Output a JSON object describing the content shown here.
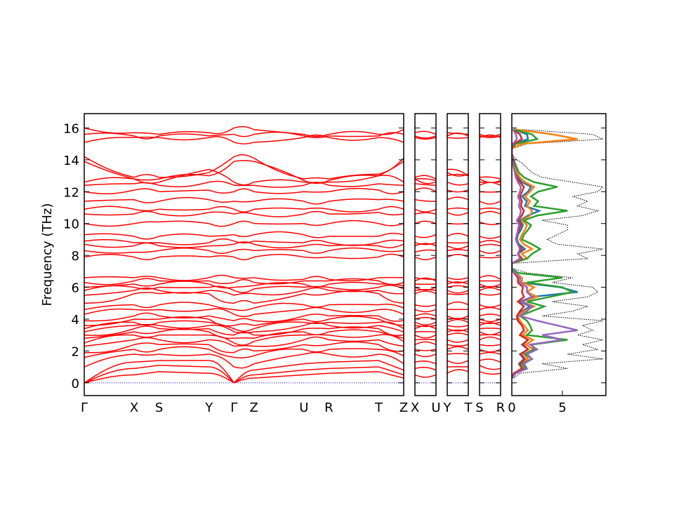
{
  "chart_data": {
    "type": "line",
    "ylabel": "Frequency (THz)",
    "ylim": [
      -0.8,
      16.9
    ],
    "yticks": [
      0,
      2,
      4,
      6,
      8,
      10,
      12,
      14,
      16
    ],
    "colors": {
      "bands": "#ff0000",
      "zero_line": "#0000ff",
      "dos_total": "#000000",
      "pdos": [
        "#1f77b4",
        "#ff7f0e",
        "#2ca02c",
        "#d62728",
        "#9467bd"
      ]
    },
    "band_segments": [
      {
        "labels": [
          "Γ",
          "X",
          "S",
          "Y",
          "Γ",
          "Z",
          "U",
          "R",
          "T",
          "Z"
        ],
        "positions": [
          0,
          1,
          1.5,
          2.5,
          3,
          3.4,
          4.4,
          4.9,
          5.9,
          6.4
        ]
      },
      {
        "labels": [
          "X",
          "U"
        ],
        "positions": [
          0,
          1
        ]
      },
      {
        "labels": [
          "Y",
          "T"
        ],
        "positions": [
          0,
          1
        ]
      },
      {
        "labels": [
          "S",
          "R"
        ],
        "positions": [
          0,
          1
        ]
      }
    ],
    "band_levels": {
      "Gamma": [
        0,
        0,
        0,
        1.0,
        1.6,
        1.9,
        2.3,
        2.5,
        2.8,
        3.0,
        3.2,
        3.4,
        3.6,
        3.9,
        4.3,
        4.6,
        5.0,
        5.5,
        5.8,
        6.0,
        6.3,
        6.6,
        7.9,
        8.3,
        8.7,
        8.9,
        9.3,
        10.0,
        10.6,
        10.9,
        11.4,
        12.0,
        12.4,
        12.6,
        13.9,
        14.2,
        15.1,
        15.6,
        16.0
      ],
      "X": [
        0.5,
        0.9,
        1.3,
        1.8,
        2.1,
        2.4,
        2.7,
        3.0,
        3.2,
        3.4,
        3.6,
        3.8,
        4.0,
        4.2,
        4.6,
        4.9,
        5.6,
        5.8,
        6.0,
        6.2,
        6.4,
        6.6,
        7.9,
        8.2,
        8.6,
        8.8,
        9.2,
        10.0,
        10.6,
        10.9,
        11.5,
        12.1,
        12.5,
        12.8,
        12.8,
        12.9,
        15.4,
        15.5,
        15.7
      ],
      "S": [
        0.7,
        1.1,
        1.4,
        1.8,
        2.1,
        2.4,
        2.7,
        3.0,
        3.2,
        3.4,
        3.6,
        3.8,
        4.0,
        4.2,
        4.6,
        4.9,
        5.6,
        5.8,
        6.0,
        6.2,
        6.4,
        6.6,
        7.9,
        8.3,
        8.6,
        8.8,
        9.2,
        10.1,
        10.6,
        10.9,
        11.4,
        12.0,
        12.4,
        12.6,
        12.8,
        12.9,
        15.4,
        15.5,
        15.6
      ],
      "Y": [
        0.6,
        1.0,
        1.4,
        1.8,
        2.1,
        2.4,
        2.7,
        3.0,
        3.2,
        3.4,
        3.6,
        3.8,
        4.0,
        4.2,
        4.6,
        4.9,
        5.6,
        5.8,
        6.0,
        6.2,
        6.4,
        6.6,
        7.9,
        8.3,
        8.6,
        8.8,
        9.2,
        10.0,
        10.7,
        10.9,
        11.5,
        12.1,
        12.6,
        13.4,
        13.0,
        13.2,
        15.4,
        15.5,
        15.7
      ],
      "Z": [
        0.3,
        0.5,
        0.8,
        1.2,
        1.7,
        2.0,
        2.3,
        2.6,
        2.8,
        3.0,
        3.2,
        3.4,
        3.6,
        3.9,
        4.3,
        4.7,
        5.0,
        5.6,
        5.9,
        6.1,
        6.3,
        6.6,
        7.9,
        8.3,
        8.7,
        8.9,
        9.3,
        10.0,
        10.6,
        10.9,
        11.4,
        12.0,
        12.4,
        12.6,
        13.9,
        14.1,
        15.1,
        15.6,
        15.9
      ],
      "U": [
        0.5,
        0.8,
        1.2,
        1.8,
        2.1,
        2.4,
        2.7,
        3.0,
        3.2,
        3.4,
        3.6,
        3.8,
        4.0,
        4.2,
        4.6,
        4.9,
        5.6,
        5.8,
        6.0,
        6.2,
        6.4,
        6.5,
        7.9,
        8.3,
        8.6,
        8.8,
        9.3,
        10.0,
        10.6,
        10.9,
        11.4,
        12.0,
        12.4,
        12.6,
        12.7,
        12.8,
        15.4,
        15.5,
        15.6
      ],
      "R": [
        0.6,
        0.9,
        1.3,
        1.8,
        2.1,
        2.4,
        2.7,
        3.0,
        3.2,
        3.4,
        3.6,
        3.8,
        4.0,
        4.2,
        4.6,
        4.9,
        5.6,
        5.8,
        6.0,
        6.2,
        6.4,
        6.5,
        7.9,
        8.3,
        8.6,
        8.8,
        9.2,
        10.0,
        10.6,
        10.9,
        11.4,
        12.0,
        12.4,
        12.6,
        12.7,
        12.8,
        15.4,
        15.5,
        15.6
      ],
      "T": [
        0.7,
        1.0,
        1.4,
        1.8,
        2.1,
        2.4,
        2.7,
        3.0,
        3.2,
        3.4,
        3.6,
        3.8,
        4.0,
        4.2,
        4.6,
        4.9,
        5.6,
        5.8,
        6.0,
        6.2,
        6.4,
        6.6,
        7.9,
        8.3,
        8.6,
        8.8,
        9.2,
        10.0,
        10.7,
        10.9,
        11.5,
        12.1,
        12.5,
        13.0,
        13.0,
        13.1,
        15.4,
        15.5,
        15.6
      ]
    },
    "dos": {
      "xlim": [
        0,
        9.3
      ],
      "xticks": [
        0,
        5
      ],
      "freq": [
        0.3,
        0.6,
        0.9,
        1.2,
        1.5,
        1.8,
        2.1,
        2.4,
        2.7,
        3.0,
        3.3,
        3.6,
        3.9,
        4.2,
        4.5,
        4.8,
        5.1,
        5.4,
        5.7,
        6.0,
        6.3,
        6.6,
        6.9,
        7.2,
        7.5,
        7.8,
        8.1,
        8.4,
        8.7,
        9.0,
        9.3,
        9.6,
        9.9,
        10.2,
        10.5,
        10.8,
        11.1,
        11.4,
        11.7,
        12.0,
        12.3,
        12.6,
        12.9,
        13.2,
        13.5,
        13.8,
        14.1,
        14.4,
        14.7,
        15.0,
        15.3,
        15.6,
        15.9
      ],
      "total": [
        0.2,
        0.8,
        5.5,
        3.0,
        9.0,
        5.5,
        8.5,
        7.0,
        9.0,
        6.5,
        8.0,
        7.0,
        9.0,
        3.0,
        6.0,
        7.5,
        4.0,
        7.5,
        8.5,
        8.0,
        4.0,
        6.0,
        1.5,
        0,
        0,
        7.5,
        6.5,
        9.0,
        4.5,
        3.5,
        4.5,
        5.5,
        5.5,
        3.0,
        7.0,
        8.5,
        6.5,
        7.5,
        6.0,
        8.5,
        9.0,
        6.0,
        3.0,
        2.0,
        1.5,
        1.0,
        0.3,
        0,
        0,
        1.5,
        9.0,
        8.0,
        1.0
      ],
      "pdos": [
        [
          0.05,
          0.2,
          1.0,
          0.7,
          1.2,
          0.8,
          1.6,
          1.0,
          1.6,
          0.8,
          1.2,
          1.0,
          0.6,
          0.5,
          1.0,
          1.8,
          0.8,
          2.0,
          6.5,
          4.8,
          0.8,
          0.8,
          0.3,
          0,
          0,
          1.0,
          0.6,
          1.3,
          0.7,
          0.5,
          0.6,
          0.9,
          1.1,
          0.8,
          1.6,
          2.7,
          1.3,
          1.5,
          1.0,
          1.6,
          1.9,
          1.0,
          0.6,
          0.4,
          0.3,
          0.2,
          0.1,
          0,
          0,
          0.3,
          1.6,
          1.5,
          0.2
        ],
        [
          0.05,
          0.3,
          1.2,
          1.0,
          1.6,
          1.2,
          2.1,
          1.4,
          2.1,
          1.1,
          1.6,
          1.2,
          0.8,
          0.6,
          1.2,
          2.2,
          1.0,
          2.5,
          1.5,
          2.2,
          1.0,
          1.0,
          0.4,
          0,
          0,
          1.5,
          1.0,
          2.0,
          1.2,
          0.8,
          1.0,
          1.3,
          1.5,
          1.0,
          1.8,
          2.0,
          1.5,
          1.8,
          1.3,
          1.8,
          2.2,
          1.3,
          0.8,
          0.5,
          0.4,
          0.3,
          0.1,
          0,
          0,
          1.0,
          6.5,
          4.0,
          0.4
        ],
        [
          0.05,
          0.3,
          1.3,
          1.0,
          2.0,
          1.3,
          2.2,
          2.0,
          5.5,
          1.5,
          2.0,
          1.8,
          1.5,
          0.8,
          2.0,
          3.2,
          1.5,
          3.8,
          6.0,
          5.0,
          1.5,
          5.0,
          0.6,
          0,
          0,
          1.5,
          2.0,
          2.8,
          2.0,
          1.0,
          1.2,
          1.6,
          1.9,
          1.2,
          2.5,
          5.5,
          2.2,
          2.6,
          1.9,
          2.6,
          4.5,
          2.2,
          1.2,
          0.7,
          0.5,
          0.3,
          0.1,
          0,
          0,
          0.4,
          2.5,
          2.0,
          0.2
        ],
        [
          0.05,
          0.2,
          1.0,
          0.8,
          1.3,
          0.9,
          1.6,
          1.1,
          1.6,
          0.8,
          1.2,
          1.0,
          0.6,
          0.5,
          0.8,
          1.2,
          0.6,
          1.2,
          1.0,
          1.1,
          0.6,
          0.6,
          0.2,
          0,
          0,
          1.0,
          0.6,
          1.0,
          0.6,
          0.4,
          0.5,
          0.7,
          0.9,
          0.6,
          1.0,
          1.2,
          0.9,
          1.0,
          0.8,
          1.0,
          1.2,
          0.8,
          0.5,
          0.3,
          0.2,
          0.2,
          0.1,
          0,
          0,
          0.2,
          1.0,
          0.8,
          0.1
        ],
        [
          0.05,
          0.4,
          1.5,
          1.2,
          2.0,
          1.5,
          2.5,
          1.8,
          5.0,
          3.0,
          6.5,
          4.5,
          2.5,
          0.8,
          1.5,
          2.0,
          1.0,
          2.0,
          1.5,
          1.5,
          0.8,
          0.8,
          0.3,
          0,
          0,
          0.8,
          0.6,
          0.8,
          0.6,
          0.4,
          0.5,
          0.6,
          0.7,
          0.5,
          0.8,
          0.9,
          0.7,
          0.8,
          0.6,
          0.8,
          0.9,
          0.6,
          0.4,
          0.3,
          0.2,
          0.1,
          0.05,
          0,
          0,
          0.1,
          0.5,
          0.4,
          0.1
        ]
      ]
    }
  }
}
